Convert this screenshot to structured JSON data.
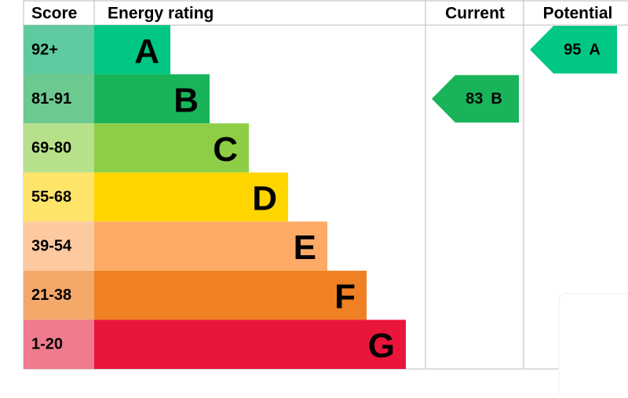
{
  "header": {
    "score": "Score",
    "rating": "Energy rating",
    "current": "Current",
    "potential": "Potential"
  },
  "bands": [
    {
      "score": "92+",
      "letter": "A",
      "color": "#00c781",
      "score_color": "#5fcaa0"
    },
    {
      "score": "81-91",
      "letter": "B",
      "color": "#19b459",
      "score_color": "#6cc98f"
    },
    {
      "score": "69-80",
      "letter": "C",
      "color": "#8dce46",
      "score_color": "#b6e08a"
    },
    {
      "score": "55-68",
      "letter": "D",
      "color": "#ffd500",
      "score_color": "#ffe46a"
    },
    {
      "score": "39-54",
      "letter": "E",
      "color": "#fcaa65",
      "score_color": "#fdc9a1"
    },
    {
      "score": "21-38",
      "letter": "F",
      "color": "#ef8023",
      "score_color": "#f4a86a"
    },
    {
      "score": "1-20",
      "letter": "G",
      "color": "#e9153b",
      "score_color": "#f07b8f"
    }
  ],
  "current": {
    "value": 83,
    "band": "B",
    "color": "#19b459"
  },
  "potential": {
    "value": 95,
    "band": "A",
    "color": "#00c781"
  }
}
